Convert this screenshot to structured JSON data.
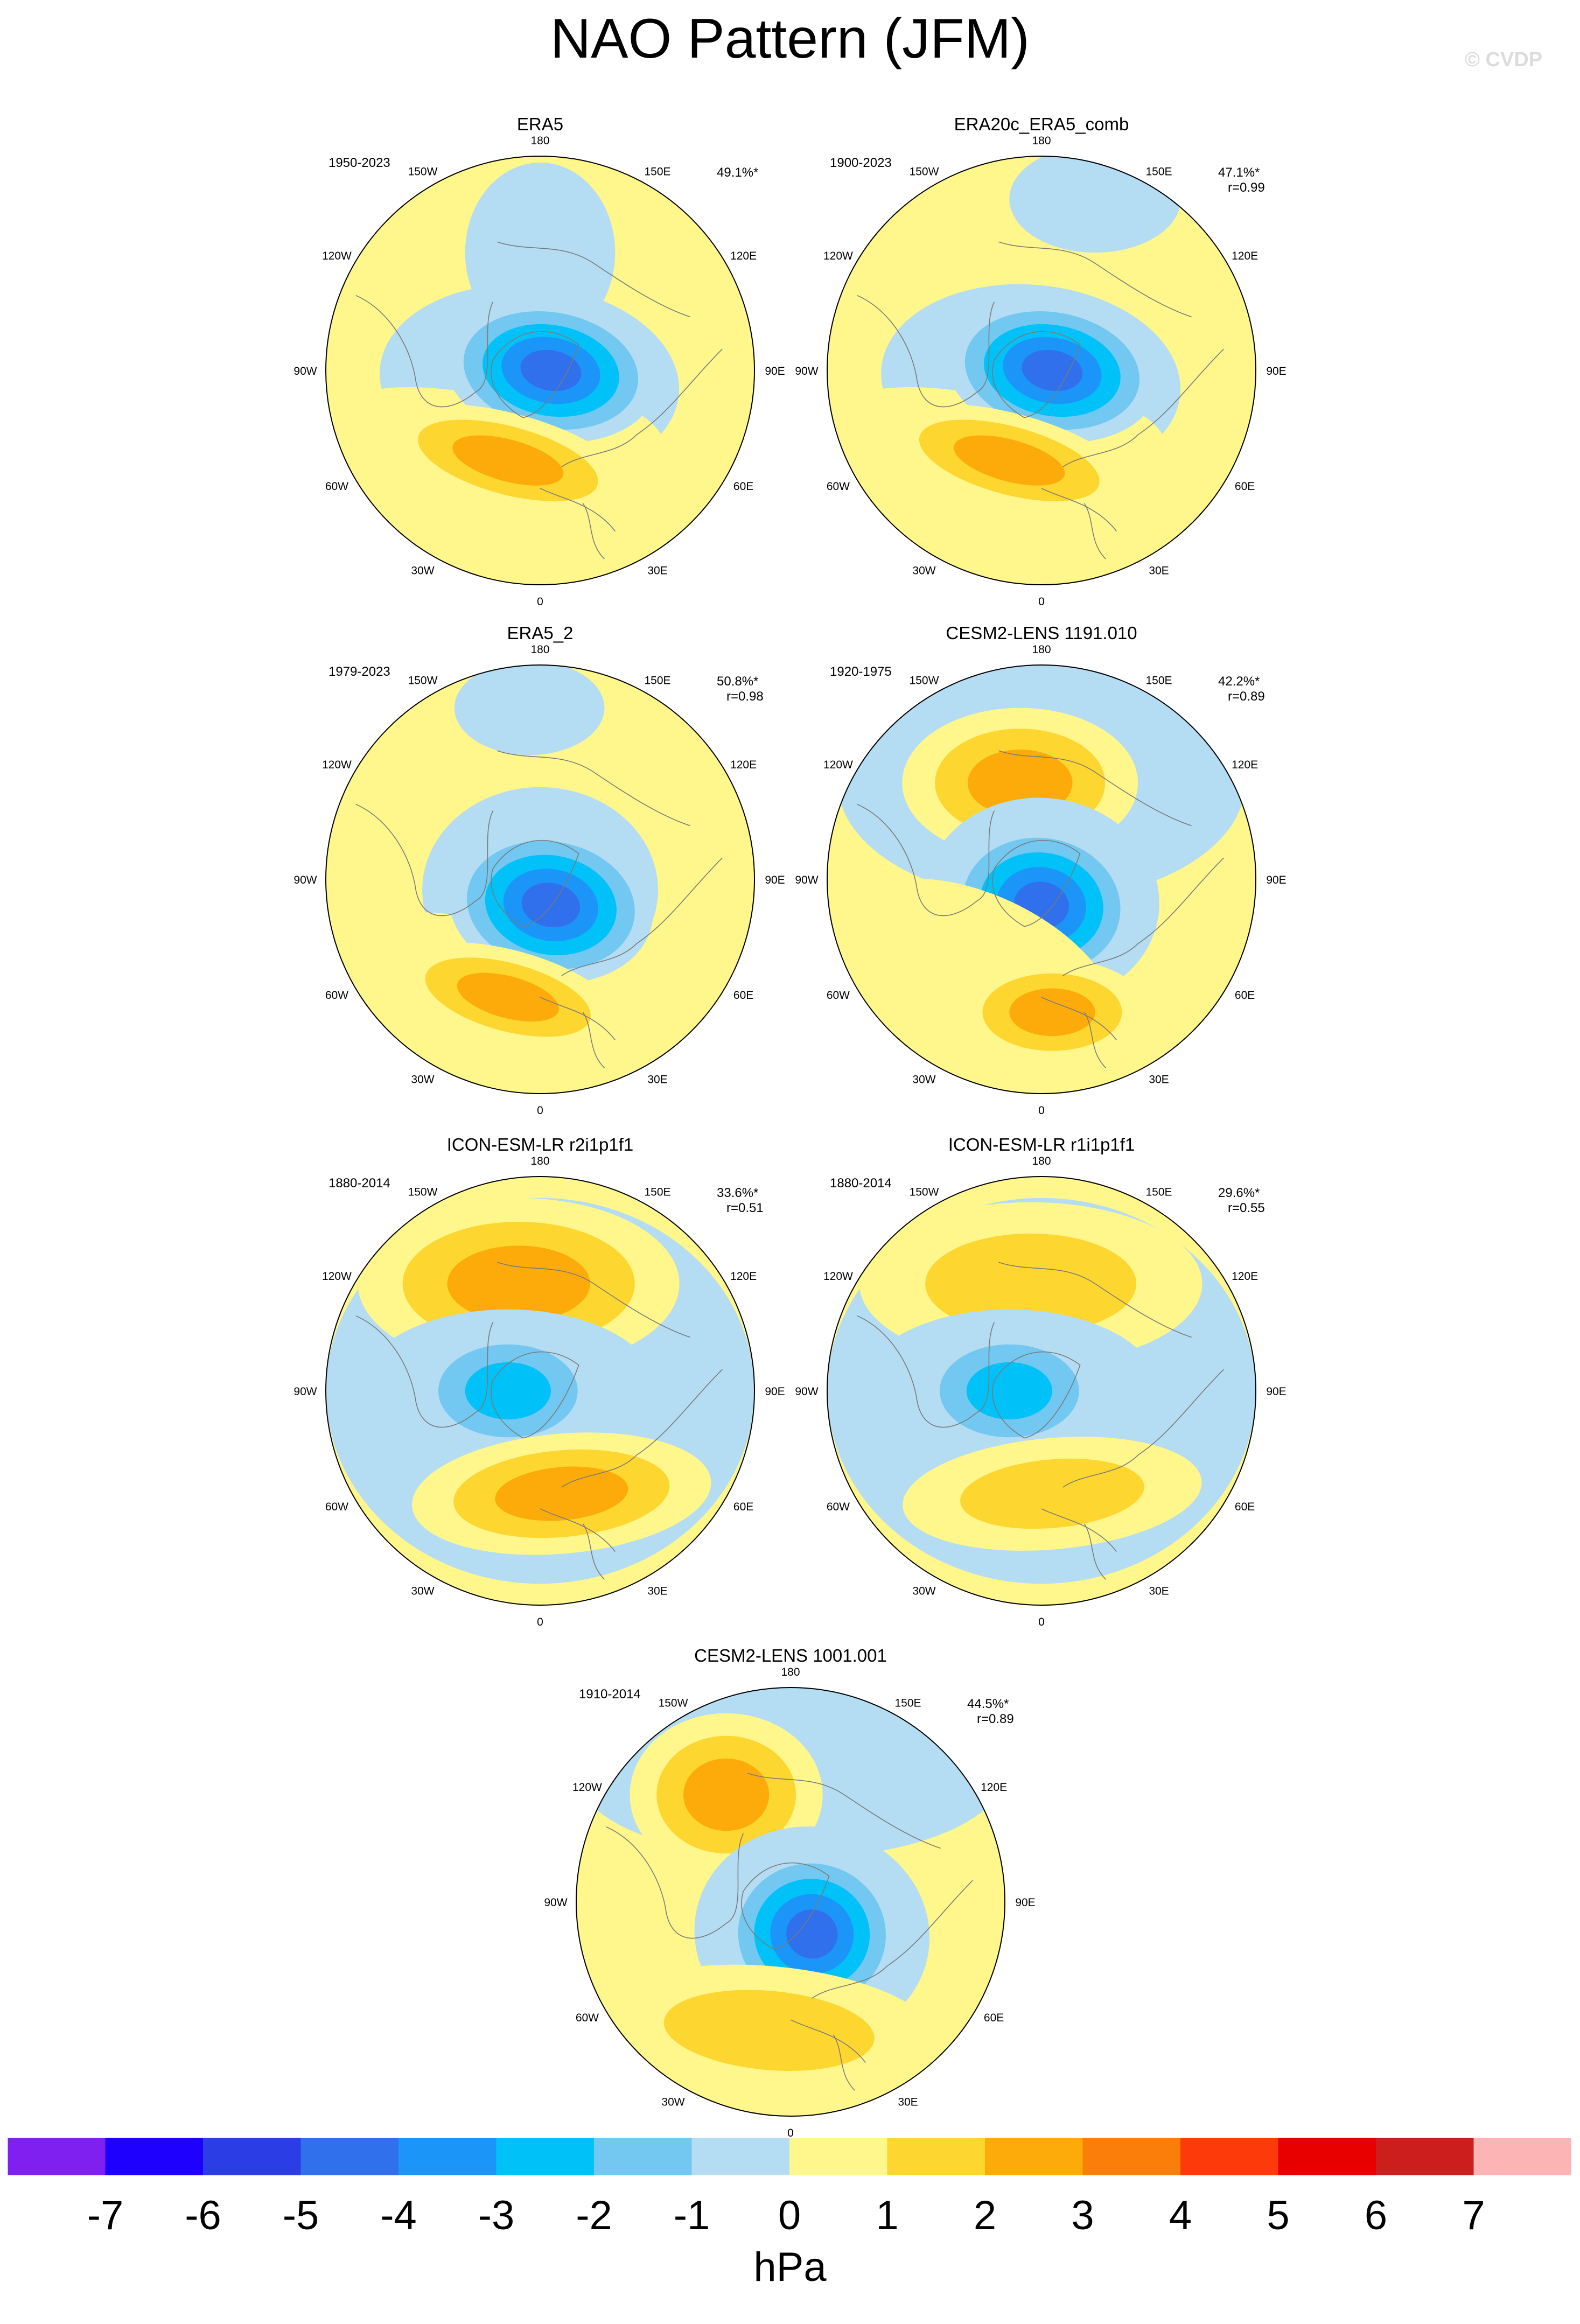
{
  "title": "NAO Pattern (JFM)",
  "watermark": "© CVDP",
  "colors": {
    "levels": [
      "#8020f0",
      "#1e00ff",
      "#2b3ee6",
      "#3070ec",
      "#1b96f8",
      "#00c2f8",
      "#72c8f0",
      "#b4dcf2",
      "#fff68c",
      "#fdd630",
      "#fcab0a",
      "#fc7e0a",
      "#fc3a0a",
      "#e80000",
      "#cd1e1e",
      "#fcb4b4"
    ],
    "coast": "#7a7a7a"
  },
  "lon_labels": [
    "180",
    "150E",
    "120E",
    "90E",
    "60E",
    "30E",
    "0",
    "30W",
    "60W",
    "90W",
    "120W",
    "150W"
  ],
  "panels": [
    {
      "title": "ERA5",
      "years": "1950-2023",
      "pct": "49.1%*",
      "r": ""
    },
    {
      "title": "ERA20c_ERA5_comb",
      "years": "1900-2023",
      "pct": "47.1%*",
      "r": "r=0.99"
    },
    {
      "title": "ERA5_2",
      "years": "1979-2023",
      "pct": "50.8%*",
      "r": "r=0.98"
    },
    {
      "title": "CESM2-LENS 1191.010",
      "years": "1920-1975",
      "pct": "42.2%*",
      "r": "r=0.89"
    },
    {
      "title": "ICON-ESM-LR r2i1p1f1",
      "years": "1880-2014",
      "pct": "33.6%*",
      "r": "r=0.51"
    },
    {
      "title": "ICON-ESM-LR r1i1p1f1",
      "years": "1880-2014",
      "pct": "29.6%*",
      "r": "r=0.55"
    },
    {
      "title": "CESM2-LENS 1001.001",
      "years": "1910-2014",
      "pct": "44.5%*",
      "r": "r=0.89"
    }
  ],
  "colorbar": {
    "tick_labels": [
      "-7",
      "-6",
      "-5",
      "-4",
      "-3",
      "-2",
      "-1",
      "0",
      "1",
      "2",
      "3",
      "4",
      "5",
      "6",
      "7"
    ],
    "unit": "hPa"
  },
  "chart_data": {
    "type": "heatmap",
    "title": "NAO Pattern (JFM)",
    "unit": "hPa",
    "levels": [
      -7,
      -6,
      -5,
      -4,
      -3,
      -2,
      -1,
      0,
      1,
      2,
      3,
      4,
      5,
      6,
      7
    ],
    "panels": [
      {
        "name": "ERA5",
        "period": "1950-2023",
        "variance_explained": "49.1%*",
        "pattern_corr": null,
        "arctic_min_hPa": -5,
        "atlantic_max_hPa": 3
      },
      {
        "name": "ERA20c_ERA5_comb",
        "period": "1900-2023",
        "variance_explained": "47.1%*",
        "pattern_corr": 0.99,
        "arctic_min_hPa": -5,
        "atlantic_max_hPa": 3
      },
      {
        "name": "ERA5_2",
        "period": "1979-2023",
        "variance_explained": "50.8%*",
        "pattern_corr": 0.98,
        "arctic_min_hPa": -5,
        "atlantic_max_hPa": 3
      },
      {
        "name": "CESM2-LENS 1191.010",
        "period": "1920-1975",
        "variance_explained": "42.2%*",
        "pattern_corr": 0.89,
        "arctic_min_hPa": -5,
        "atlantic_max_hPa": 3
      },
      {
        "name": "ICON-ESM-LR r2i1p1f1",
        "period": "1880-2014",
        "variance_explained": "33.6%*",
        "pattern_corr": 0.51,
        "arctic_min_hPa": -3,
        "atlantic_max_hPa": 3
      },
      {
        "name": "ICON-ESM-LR r1i1p1f1",
        "period": "1880-2014",
        "variance_explained": "29.6%*",
        "pattern_corr": 0.55,
        "arctic_min_hPa": -3,
        "atlantic_max_hPa": 2
      },
      {
        "name": "CESM2-LENS 1001.001",
        "period": "1910-2014",
        "variance_explained": "44.5%*",
        "pattern_corr": 0.89,
        "arctic_min_hPa": -5,
        "atlantic_max_hPa": 2
      }
    ]
  }
}
